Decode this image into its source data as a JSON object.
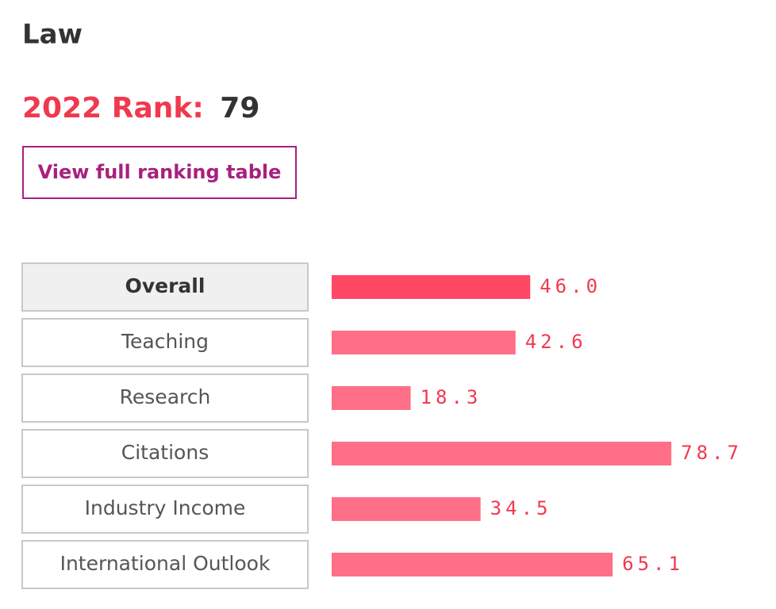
{
  "header": {
    "title": "Law",
    "rank_label": "2022 Rank:",
    "rank": 79,
    "button": "View full ranking table"
  },
  "chart_data": {
    "type": "bar",
    "orientation": "horizontal",
    "categories": [
      "Overall",
      "Teaching",
      "Research",
      "Citations",
      "Industry Income",
      "International Outlook"
    ],
    "values": [
      46.0,
      42.6,
      18.3,
      78.7,
      34.5,
      65.1
    ],
    "value_labels": [
      "46.0",
      "42.6",
      "18.3",
      "78.7",
      "34.5",
      "65.1"
    ],
    "colors": [
      "#ff4766",
      "#ff6f87",
      "#ff6f87",
      "#ff6f87",
      "#ff6f87",
      "#ff6f87"
    ],
    "selected": 0
  }
}
